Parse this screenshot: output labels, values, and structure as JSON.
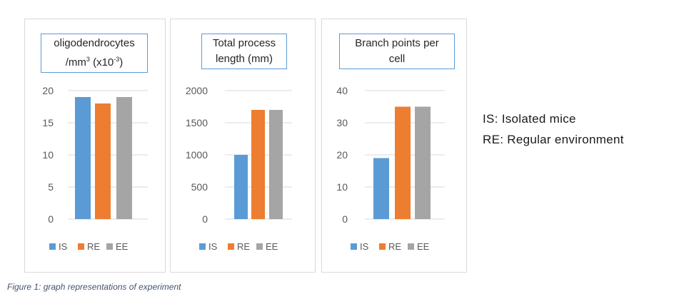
{
  "legend_items": [
    {
      "label": "IS",
      "color": "#5b9bd5"
    },
    {
      "label": "RE",
      "color": "#ed7d31"
    },
    {
      "label": "EE",
      "color": "#a5a5a5"
    }
  ],
  "notes": {
    "is": "IS: Isolated mice",
    "re": "RE: Regular environment"
  },
  "caption": "Figure 1: graph representations of experiment",
  "chart_data": [
    {
      "type": "bar",
      "title": "oligodendrocytes /mm³ (x10⁻³)",
      "categories": [
        "IS",
        "RE",
        "EE"
      ],
      "values": [
        19,
        18,
        19
      ],
      "ylim": [
        0,
        20
      ],
      "yticks": [
        "0",
        "5",
        "10",
        "15",
        "20"
      ],
      "grid": true,
      "legend": "bottom"
    },
    {
      "type": "bar",
      "title": "Total process length (mm)",
      "categories": [
        "IS",
        "RE",
        "EE"
      ],
      "values": [
        1000,
        1700,
        1700
      ],
      "ylim": [
        0,
        2000
      ],
      "yticks": [
        "0",
        "500",
        "1000",
        "1500",
        "2000"
      ],
      "grid": true,
      "legend": "bottom"
    },
    {
      "type": "bar",
      "title": "Branch points per cell",
      "categories": [
        "IS",
        "RE",
        "EE"
      ],
      "values": [
        19,
        35,
        35
      ],
      "ylim": [
        0,
        40
      ],
      "yticks": [
        "0",
        "10",
        "20",
        "30",
        "40"
      ],
      "grid": true,
      "legend": "bottom"
    }
  ]
}
